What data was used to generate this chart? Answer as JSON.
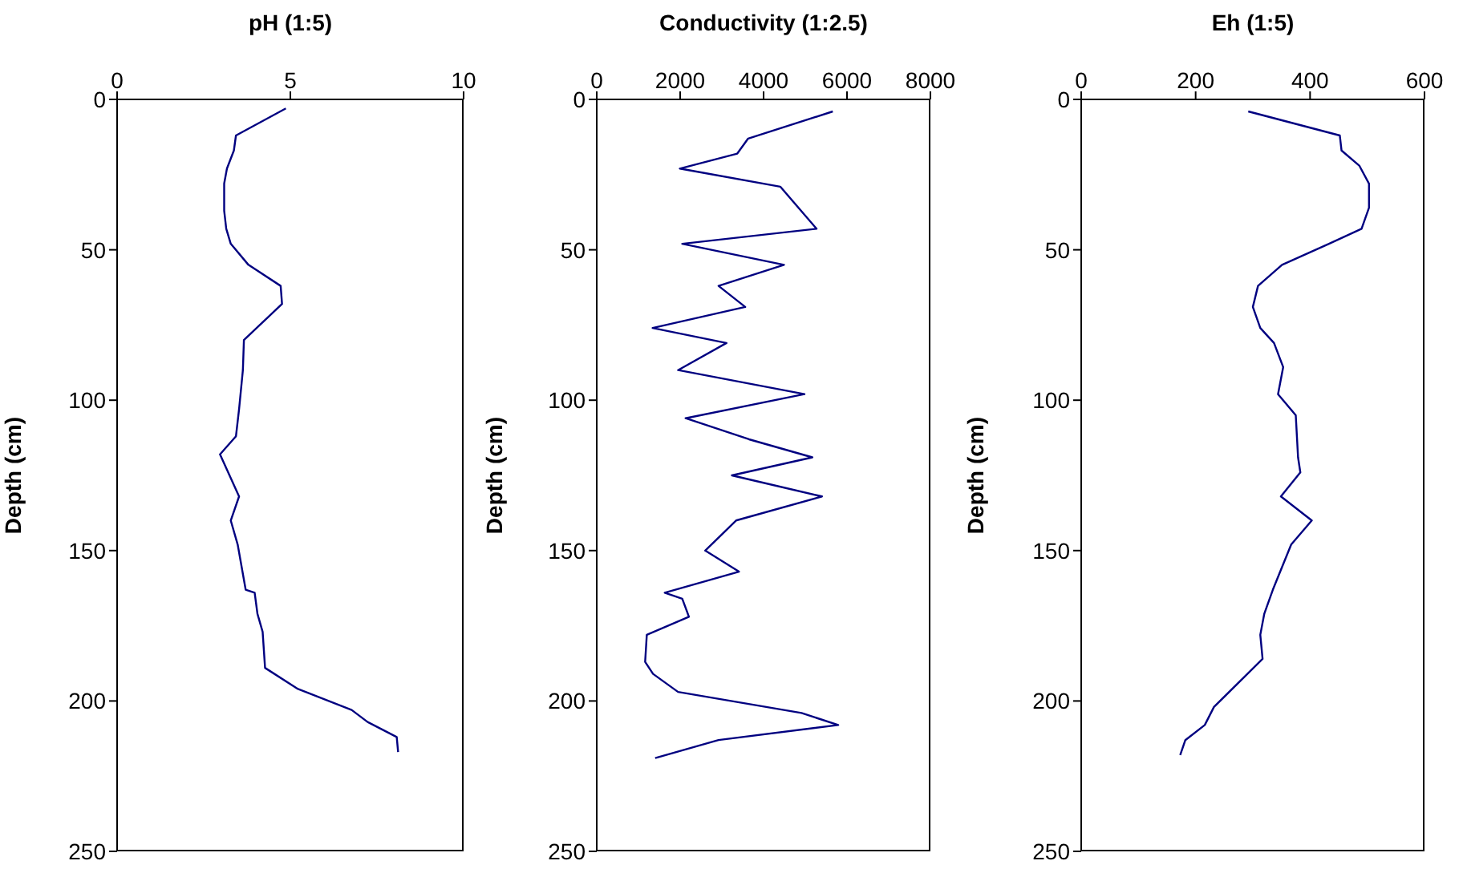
{
  "chart_data": [
    {
      "type": "line",
      "title": "pH (1:5)",
      "ylabel": "Depth (cm)",
      "xlim": [
        0,
        10
      ],
      "xticks": [
        0,
        5,
        10
      ],
      "ylim": [
        250,
        0
      ],
      "yticks": [
        0,
        50,
        100,
        150,
        200,
        250
      ],
      "color": "#000080",
      "x": [
        4.87,
        3.43,
        3.37,
        3.17,
        3.09,
        3.09,
        3.15,
        3.28,
        3.79,
        4.72,
        4.76,
        3.66,
        3.63,
        3.52,
        3.43,
        2.97,
        3.52,
        3.28,
        3.48,
        3.71,
        3.97,
        4.05,
        4.2,
        4.27,
        5.22,
        6.77,
        7.23,
        8.07,
        8.11
      ],
      "values": [
        3,
        12,
        17,
        23,
        28,
        37,
        43,
        48,
        55,
        62,
        68,
        80,
        90,
        103,
        112,
        118,
        132,
        140,
        148,
        163,
        164,
        171,
        177,
        189,
        196,
        203,
        207,
        212,
        217
      ]
    },
    {
      "type": "line",
      "title": "Conductivity (1:2.5)",
      "ylabel": "Depth (cm)",
      "xlim": [
        0,
        8000
      ],
      "xticks": [
        0,
        2000,
        4000,
        6000,
        8000
      ],
      "ylim": [
        250,
        0
      ],
      "yticks": [
        0,
        50,
        100,
        150,
        200,
        250
      ],
      "color": "#000080",
      "x": [
        5660,
        3630,
        3370,
        1990,
        4400,
        5270,
        2050,
        4490,
        2920,
        3560,
        1340,
        3110,
        1950,
        4980,
        2130,
        3650,
        5170,
        3240,
        5400,
        3340,
        2600,
        3410,
        1630,
        2050,
        2210,
        1200,
        1160,
        1350,
        1950,
        4910,
        5790,
        2920,
        1400
      ],
      "values": [
        4,
        13,
        18,
        23,
        29,
        43,
        48,
        55,
        62,
        69,
        76,
        81,
        90,
        98,
        106,
        113,
        119,
        125,
        132,
        140,
        150,
        157,
        164,
        166,
        172,
        178,
        187,
        191,
        197,
        204,
        208,
        213,
        219
      ]
    },
    {
      "type": "line",
      "title": "Eh (1:5)",
      "ylabel": "Depth (cm)",
      "xlim": [
        0,
        600
      ],
      "xticks": [
        0,
        200,
        400,
        600
      ],
      "ylim": [
        250,
        0
      ],
      "yticks": [
        0,
        50,
        100,
        150,
        200,
        250
      ],
      "color": "#000080",
      "x": [
        292,
        452,
        455,
        486,
        503,
        503,
        490,
        433,
        351,
        309,
        300,
        313,
        337,
        353,
        344,
        375,
        379,
        383,
        349,
        403,
        367,
        335,
        320,
        313,
        317,
        232,
        216,
        182,
        173
      ],
      "values": [
        4,
        12,
        17,
        22,
        28,
        36,
        43,
        48,
        55,
        62,
        69,
        76,
        81,
        89,
        98,
        105,
        119,
        124,
        132,
        140,
        148,
        163,
        171,
        178,
        186,
        202,
        208,
        213,
        218
      ]
    }
  ]
}
